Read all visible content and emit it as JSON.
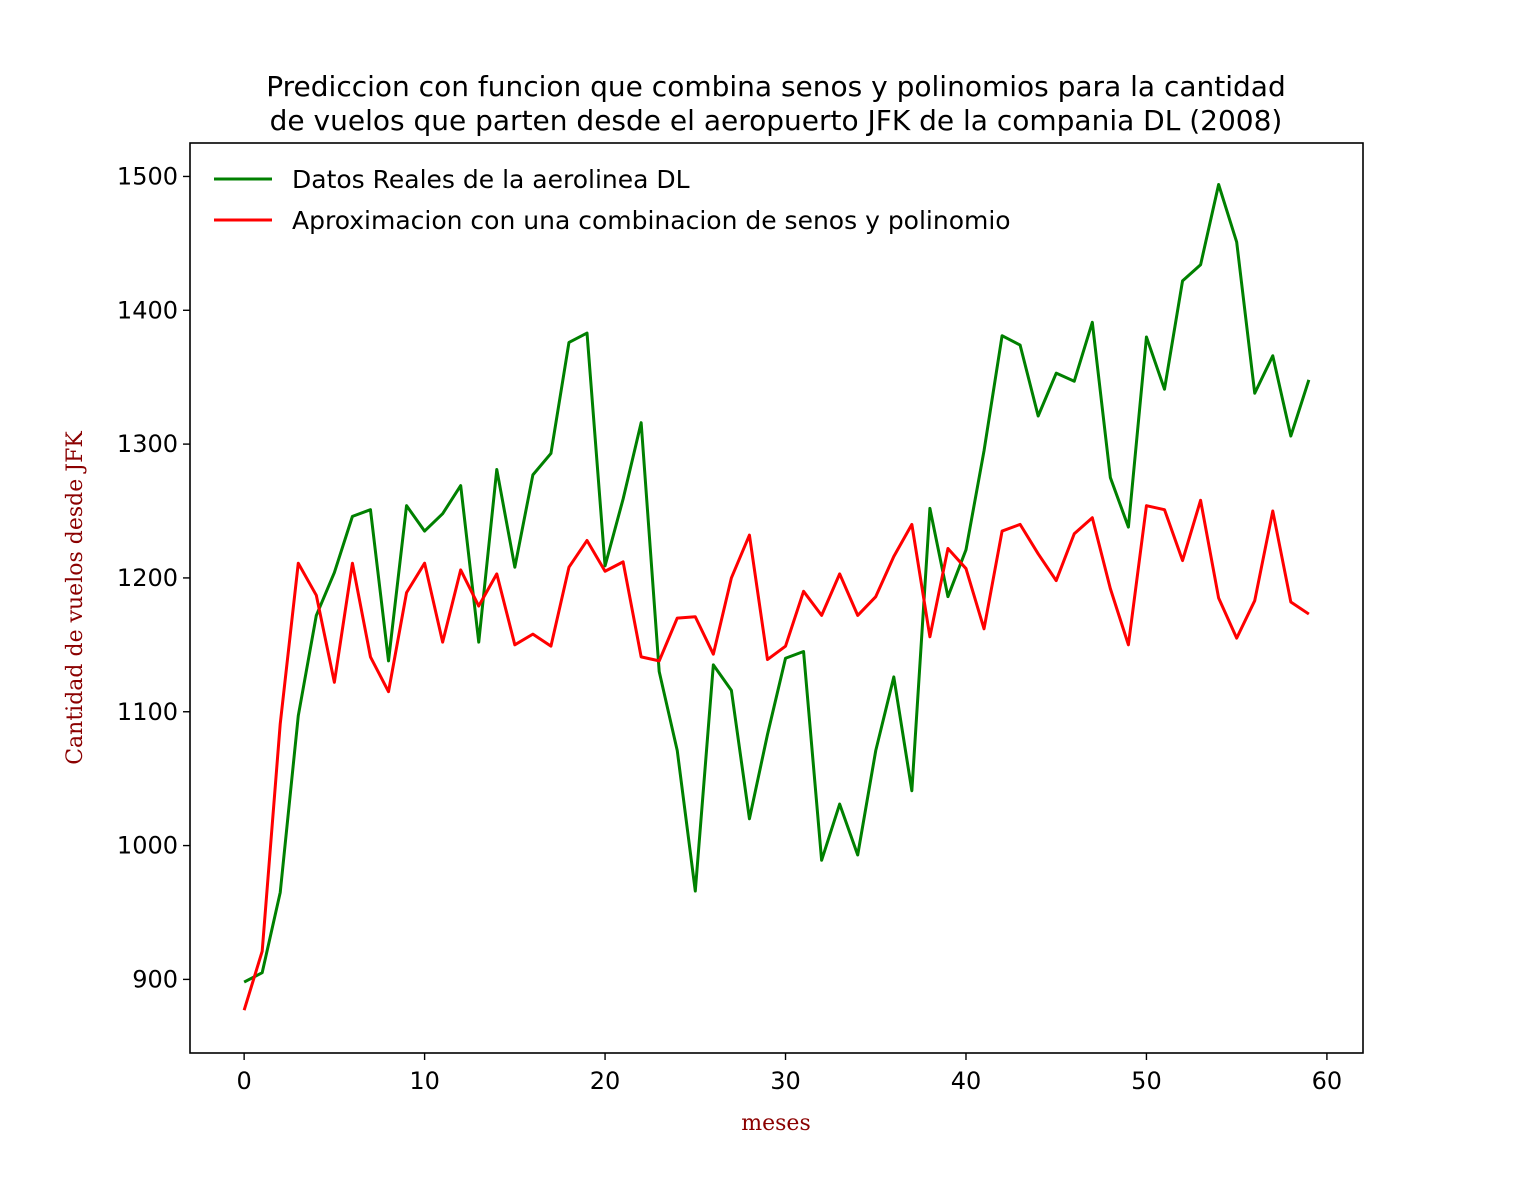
{
  "chart_data": {
    "type": "line",
    "title_lines": [
      "Prediccion con funcion que combina senos y polinomios para la cantidad",
      "de vuelos que parten desde el aeropuerto JFK de la compania DL (2008)"
    ],
    "xlabel": "meses",
    "ylabel": "Cantidad de vuelos desde JFK",
    "label_color": "#8b0000",
    "xlim": [
      -3,
      62
    ],
    "ylim": [
      845,
      1525
    ],
    "xticks": [
      0,
      10,
      20,
      30,
      40,
      50,
      60
    ],
    "yticks": [
      900,
      1000,
      1100,
      1200,
      1300,
      1400,
      1500
    ],
    "grid": false,
    "legend_position": "upper-left",
    "x": [
      0,
      1,
      2,
      3,
      4,
      5,
      6,
      7,
      8,
      9,
      10,
      11,
      12,
      13,
      14,
      15,
      16,
      17,
      18,
      19,
      20,
      21,
      22,
      23,
      24,
      25,
      26,
      27,
      28,
      29,
      30,
      31,
      32,
      33,
      34,
      35,
      36,
      37,
      38,
      39,
      40,
      41,
      42,
      43,
      44,
      45,
      46,
      47,
      48,
      49,
      50,
      51,
      52,
      53,
      54,
      55,
      56,
      57,
      58,
      59
    ],
    "series": [
      {
        "name": "Datos Reales de la aerolinea DL",
        "color": "#008000",
        "values": [
          898,
          905,
          965,
          1097,
          1172,
          1204,
          1246,
          1251,
          1138,
          1254,
          1235,
          1248,
          1269,
          1152,
          1281,
          1208,
          1277,
          1293,
          1376,
          1383,
          1209,
          1259,
          1316,
          1130,
          1071,
          966,
          1135,
          1116,
          1020,
          1083,
          1140,
          1145,
          989,
          1031,
          993,
          1071,
          1126,
          1041,
          1252,
          1186,
          1221,
          1295,
          1381,
          1374,
          1321,
          1353,
          1347,
          1391,
          1275,
          1238,
          1380,
          1341,
          1422,
          1434,
          1494,
          1451,
          1338,
          1366,
          1306,
          1348
        ]
      },
      {
        "name": "Aproximacion con una combinacion de senos y polinomio",
        "color": "#ff0000",
        "values": [
          877,
          921,
          1091,
          1211,
          1187,
          1122,
          1211,
          1141,
          1115,
          1189,
          1211,
          1152,
          1206,
          1179,
          1203,
          1150,
          1158,
          1149,
          1208,
          1228,
          1205,
          1212,
          1141,
          1138,
          1170,
          1171,
          1143,
          1200,
          1232,
          1139,
          1149,
          1190,
          1172,
          1203,
          1172,
          1186,
          1216,
          1240,
          1156,
          1222,
          1207,
          1162,
          1235,
          1240,
          1218,
          1198,
          1233,
          1245,
          1192,
          1150,
          1254,
          1251,
          1213,
          1258,
          1185,
          1155,
          1183,
          1250,
          1182,
          1173
        ]
      }
    ]
  }
}
